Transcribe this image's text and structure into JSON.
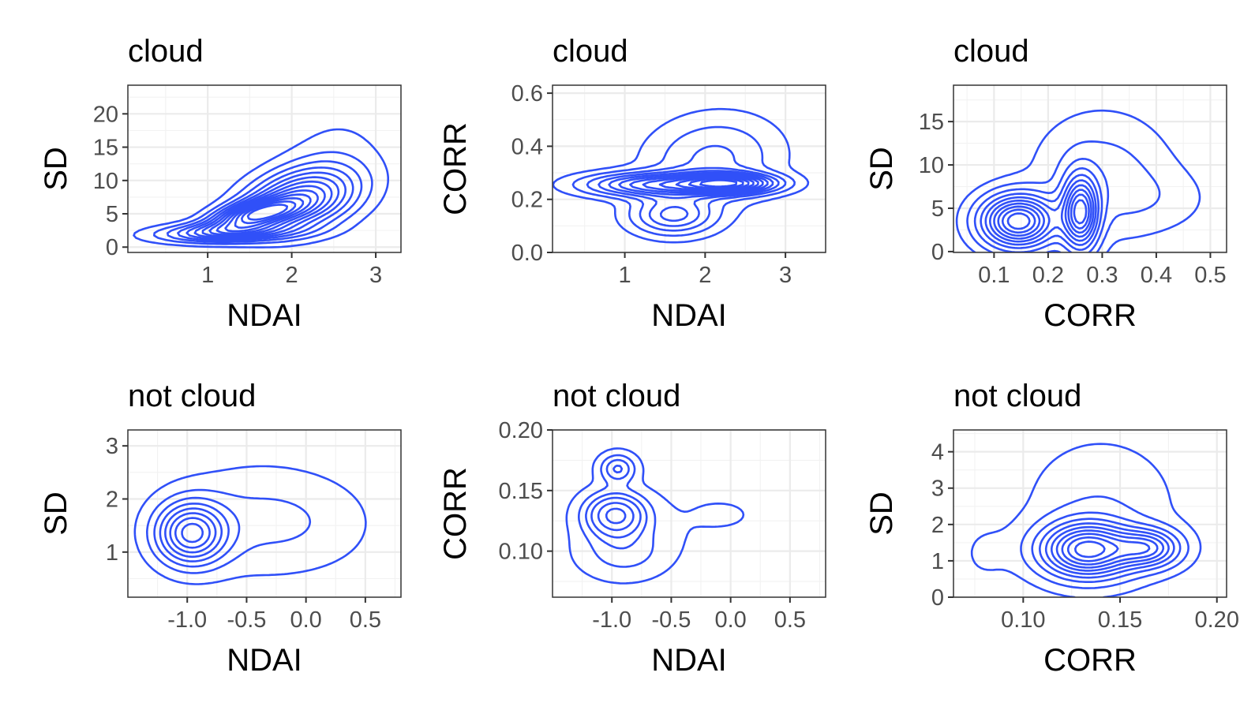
{
  "figure": {
    "background": "#ffffff",
    "contour_color": "#3050f8"
  },
  "chart_data": [
    {
      "type": "contour",
      "title": "cloud",
      "xlabel": "NDAI",
      "ylabel": "SD",
      "xlim": [
        0.05,
        3.3
      ],
      "ylim": [
        -0.8,
        24.3
      ],
      "xticks": [
        1,
        2,
        3
      ],
      "yticks": [
        0,
        5,
        10,
        15,
        20
      ],
      "xtick_labels": [
        "1",
        "2",
        "3"
      ],
      "ytick_labels": [
        "0",
        "5",
        "10",
        "15",
        "20"
      ],
      "grid": true,
      "density": {
        "peaks": [
          {
            "x": 1.55,
            "y": 4.8,
            "sx": 0.35,
            "sy": 1.6,
            "rho": 0.5,
            "w": 1.0
          },
          {
            "x": 2.1,
            "y": 7.2,
            "sx": 0.45,
            "sy": 3.2,
            "rho": 0.3,
            "w": 0.85
          },
          {
            "x": 1.2,
            "y": 2.2,
            "sx": 0.55,
            "sy": 1.0,
            "rho": 0.2,
            "w": 0.6
          },
          {
            "x": 2.5,
            "y": 13.0,
            "sx": 0.45,
            "sy": 5.5,
            "rho": 0.15,
            "w": 0.12
          }
        ],
        "levels": [
          0.06,
          0.13,
          0.2,
          0.27,
          0.34,
          0.41,
          0.48,
          0.55,
          0.62,
          0.69,
          0.76,
          0.83,
          0.9
        ]
      }
    },
    {
      "type": "contour",
      "title": "cloud",
      "xlabel": "NDAI",
      "ylabel": "CORR",
      "xlim": [
        0.1,
        3.5
      ],
      "ylim": [
        0,
        0.63
      ],
      "xticks": [
        1,
        2,
        3
      ],
      "yticks": [
        0.0,
        0.2,
        0.4,
        0.6
      ],
      "xtick_labels": [
        "1",
        "2",
        "3"
      ],
      "ytick_labels": [
        "0.0",
        "0.2",
        "0.4",
        "0.6"
      ],
      "grid": true,
      "density": {
        "peaks": [
          {
            "x": 2.3,
            "y": 0.26,
            "sx": 0.4,
            "sy": 0.025,
            "rho": 0.0,
            "w": 1.0
          },
          {
            "x": 1.3,
            "y": 0.255,
            "sx": 0.55,
            "sy": 0.03,
            "rho": 0.0,
            "w": 0.7
          },
          {
            "x": 1.6,
            "y": 0.14,
            "sx": 0.35,
            "sy": 0.05,
            "rho": 0.0,
            "w": 0.5
          },
          {
            "x": 2.1,
            "y": 0.35,
            "sx": 0.55,
            "sy": 0.11,
            "rho": 0.1,
            "w": 0.3
          }
        ],
        "levels": [
          0.05,
          0.12,
          0.2,
          0.28,
          0.36,
          0.44,
          0.52,
          0.6,
          0.68,
          0.76,
          0.84,
          0.92
        ]
      }
    },
    {
      "type": "contour",
      "title": "cloud",
      "xlabel": "CORR",
      "ylabel": "SD",
      "xlim": [
        0.025,
        0.53
      ],
      "ylim": [
        -0.1,
        19.2
      ],
      "xticks": [
        0.1,
        0.2,
        0.3,
        0.4,
        0.5
      ],
      "yticks": [
        0,
        5,
        10,
        15
      ],
      "xtick_labels": [
        "0.1",
        "0.2",
        "0.3",
        "0.4",
        "0.5"
      ],
      "ytick_labels": [
        "0",
        "5",
        "10",
        "15"
      ],
      "grid": true,
      "density": {
        "peaks": [
          {
            "x": 0.145,
            "y": 3.5,
            "sx": 0.045,
            "sy": 2.0,
            "rho": 0.0,
            "w": 1.0
          },
          {
            "x": 0.26,
            "y": 4.5,
            "sx": 0.022,
            "sy": 2.8,
            "rho": 0.0,
            "w": 0.9
          },
          {
            "x": 0.3,
            "y": 9.0,
            "sx": 0.08,
            "sy": 4.5,
            "rho": 0.0,
            "w": 0.15
          },
          {
            "x": 0.4,
            "y": 6.0,
            "sx": 0.07,
            "sy": 2.5,
            "rho": 0.0,
            "w": 0.06
          }
        ],
        "levels": [
          0.04,
          0.11,
          0.2,
          0.3,
          0.4,
          0.5,
          0.6,
          0.7,
          0.8,
          0.9
        ]
      }
    },
    {
      "type": "contour",
      "title": "not cloud",
      "xlabel": "NDAI",
      "ylabel": "SD",
      "xlim": [
        -1.5,
        0.8
      ],
      "ylim": [
        0.15,
        3.3
      ],
      "xticks": [
        -1.0,
        -0.5,
        0.0,
        0.5
      ],
      "yticks": [
        1,
        2,
        3
      ],
      "xtick_labels": [
        "-1.0",
        "-0.5",
        "0.0",
        "0.5"
      ],
      "ytick_labels": [
        "1",
        "2",
        "3"
      ],
      "grid": true,
      "density": {
        "peaks": [
          {
            "x": -0.97,
            "y": 1.35,
            "sx": 0.2,
            "sy": 0.4,
            "rho": 0.0,
            "w": 1.0
          },
          {
            "x": -0.4,
            "y": 1.6,
            "sx": 0.5,
            "sy": 0.7,
            "rho": 0.0,
            "w": 0.25
          },
          {
            "x": 0.2,
            "y": 1.5,
            "sx": 0.35,
            "sy": 0.6,
            "rho": 0.0,
            "w": 0.06
          }
        ],
        "levels": [
          0.08,
          0.2,
          0.32,
          0.44,
          0.56,
          0.68,
          0.8,
          0.92
        ]
      }
    },
    {
      "type": "contour",
      "title": "not cloud",
      "xlabel": "NDAI",
      "ylabel": "CORR",
      "xlim": [
        -1.5,
        0.8
      ],
      "ylim": [
        0.062,
        0.2
      ],
      "xticks": [
        -1.0,
        -0.5,
        0.0,
        0.5
      ],
      "yticks": [
        0.1,
        0.15,
        0.2
      ],
      "xtick_labels": [
        "-1.0",
        "-0.5",
        "0.0",
        "0.5"
      ],
      "ytick_labels": [
        "0.10",
        "0.15",
        "0.20"
      ],
      "grid": true,
      "density": {
        "peaks": [
          {
            "x": -0.97,
            "y": 0.13,
            "sx": 0.17,
            "sy": 0.012,
            "rho": 0.0,
            "w": 1.0
          },
          {
            "x": -0.95,
            "y": 0.168,
            "sx": 0.1,
            "sy": 0.008,
            "rho": 0.0,
            "w": 0.55
          },
          {
            "x": -0.9,
            "y": 0.1,
            "sx": 0.25,
            "sy": 0.015,
            "rho": 0.0,
            "w": 0.3
          },
          {
            "x": -0.1,
            "y": 0.13,
            "sx": 0.45,
            "sy": 0.02,
            "rho": 0.0,
            "w": 0.07
          }
        ],
        "levels": [
          0.06,
          0.2,
          0.35,
          0.5,
          0.7,
          0.9
        ]
      }
    },
    {
      "type": "contour",
      "title": "not cloud",
      "xlabel": "CORR",
      "ylabel": "SD",
      "xlim": [
        0.064,
        0.205
      ],
      "ylim": [
        0,
        4.6
      ],
      "xticks": [
        0.1,
        0.15,
        0.2
      ],
      "yticks": [
        0,
        1,
        2,
        3,
        4
      ],
      "xtick_labels": [
        "0.10",
        "0.15",
        "0.20"
      ],
      "ytick_labels": [
        "0",
        "1",
        "2",
        "3",
        "4"
      ],
      "grid": true,
      "density": {
        "peaks": [
          {
            "x": 0.133,
            "y": 1.3,
            "sx": 0.016,
            "sy": 0.5,
            "rho": 0.0,
            "w": 1.0
          },
          {
            "x": 0.165,
            "y": 1.35,
            "sx": 0.011,
            "sy": 0.35,
            "rho": 0.0,
            "w": 0.6
          },
          {
            "x": 0.14,
            "y": 2.5,
            "sx": 0.025,
            "sy": 1.2,
            "rho": 0.0,
            "w": 0.12
          },
          {
            "x": 0.08,
            "y": 1.2,
            "sx": 0.01,
            "sy": 0.6,
            "rho": 0.0,
            "w": 0.05
          }
        ],
        "levels": [
          0.04,
          0.12,
          0.22,
          0.32,
          0.42,
          0.52,
          0.62,
          0.72,
          0.82,
          0.92
        ]
      }
    }
  ]
}
